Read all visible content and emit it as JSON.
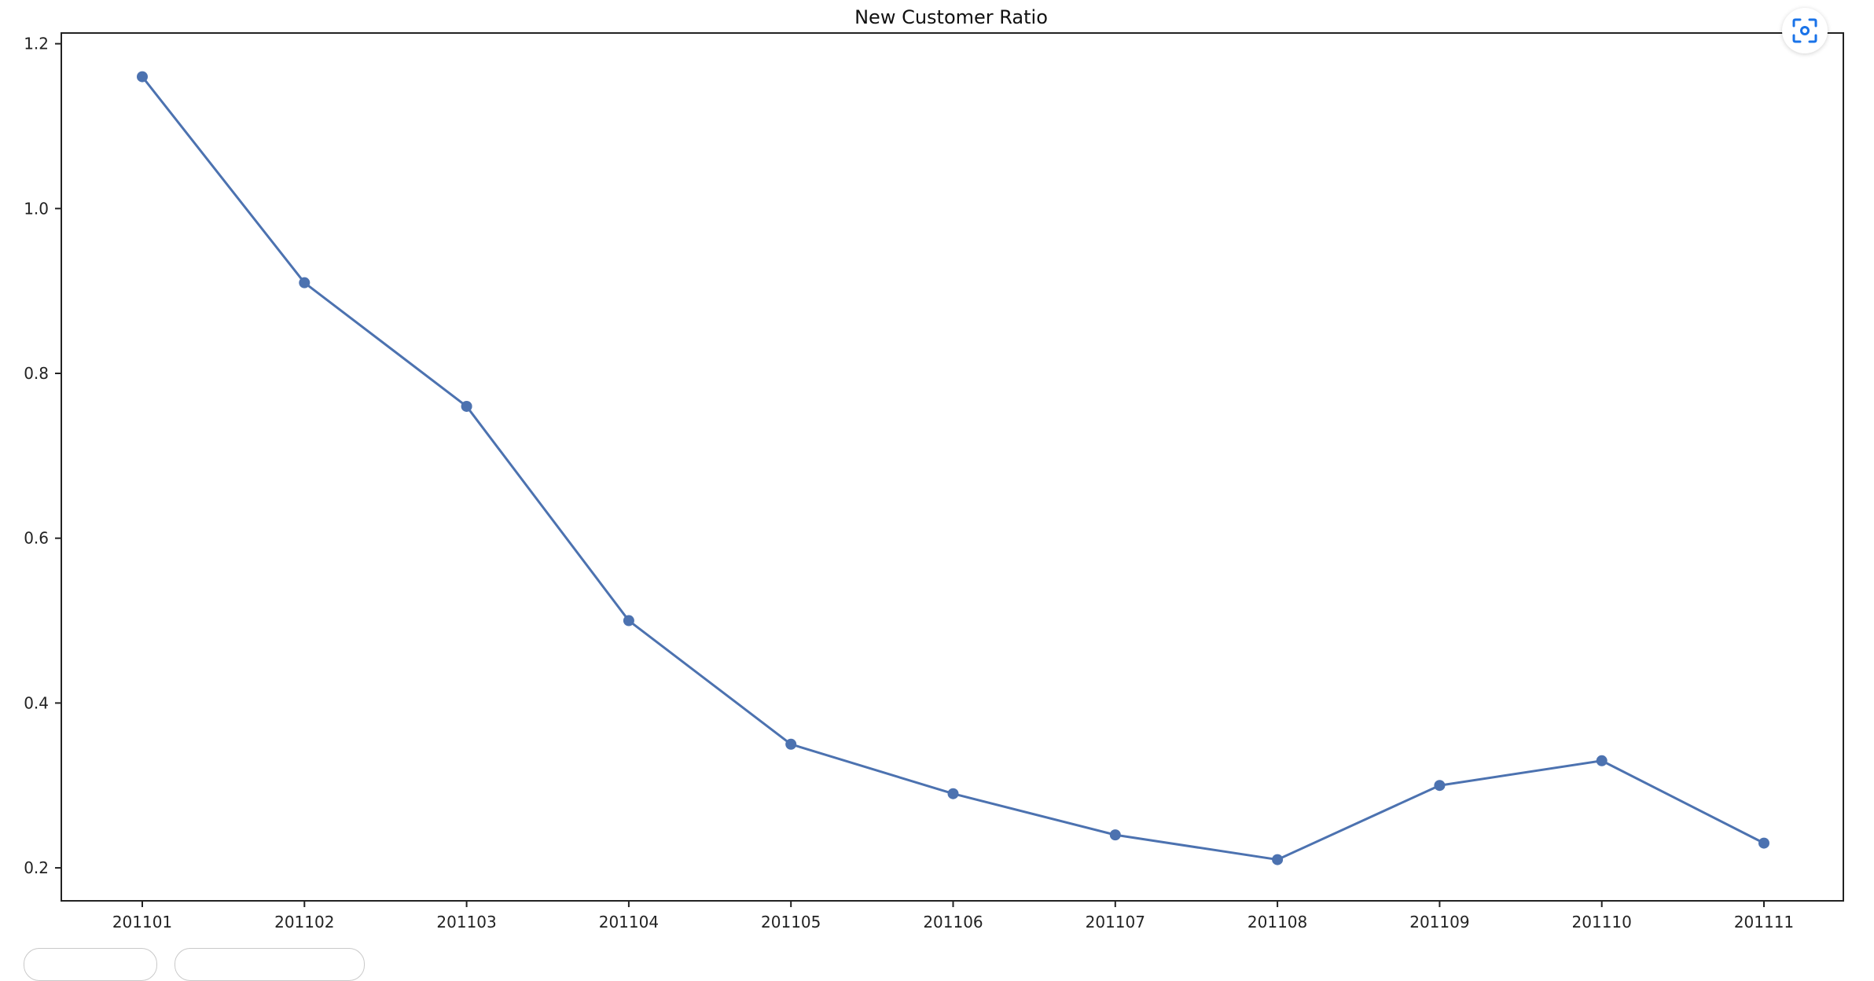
{
  "chart_data": {
    "type": "line",
    "title": "New Customer Ratio",
    "xlabel": "",
    "ylabel": "",
    "categories": [
      "201101",
      "201102",
      "201103",
      "201104",
      "201105",
      "201106",
      "201107",
      "201108",
      "201109",
      "201110",
      "201111"
    ],
    "series": [
      {
        "values": [
          1.16,
          0.91,
          0.76,
          0.5,
          0.35,
          0.29,
          0.24,
          0.21,
          0.3,
          0.33,
          0.23
        ],
        "color": "#4c72b0"
      }
    ],
    "ylim": [
      0.16,
      1.213
    ],
    "yticks": [
      0.2,
      0.4,
      0.6,
      0.8,
      1.0,
      1.2
    ],
    "ytick_labels": [
      "0.2",
      "0.4",
      "0.6",
      "0.8",
      "1.0",
      "1.2"
    ],
    "grid": false,
    "markers": true
  },
  "toolbar": {
    "screenshot_icon": "screenshot-icon"
  }
}
